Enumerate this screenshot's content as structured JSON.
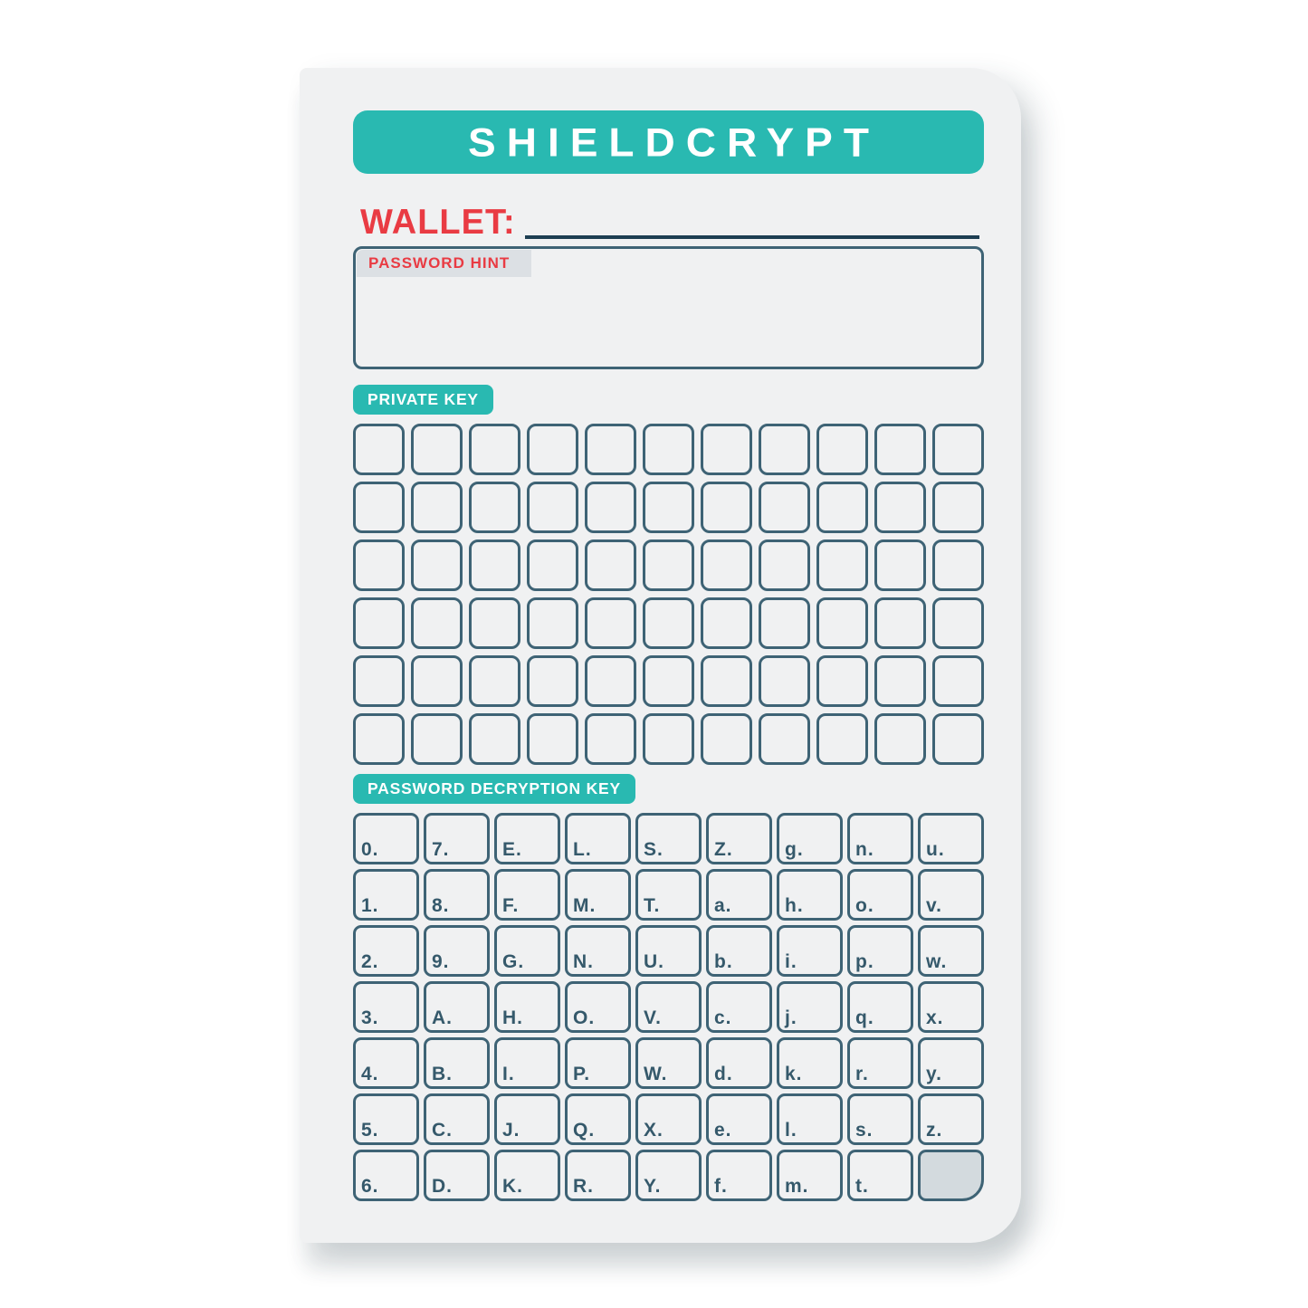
{
  "card": {
    "title": "SHIELDCRYPT",
    "wallet_label": "WALLET:",
    "hint_label": "PASSWORD HINT",
    "private_key_label": "PRIVATE KEY",
    "decryption_key_label": "PASSWORD DECRYPTION KEY"
  },
  "colors": {
    "teal": "#29b9b1",
    "red": "#e93b43",
    "slate_border": "#3e6375",
    "label_text": "#35596b",
    "line": "#1d3e52",
    "card_bg": "#f0f1f2",
    "strip_bg": "#dce0e4",
    "blank_cell_bg": "#d3dade"
  },
  "private_key_grid": {
    "rows": 6,
    "cols": 11
  },
  "decryption_grid": {
    "rows": [
      [
        "0.",
        "7.",
        "E.",
        "L.",
        "S.",
        "Z.",
        "g.",
        "n.",
        "u."
      ],
      [
        "1.",
        "8.",
        "F.",
        "M.",
        "T.",
        "a.",
        "h.",
        "o.",
        "v."
      ],
      [
        "2.",
        "9.",
        "G.",
        "N.",
        "U.",
        "b.",
        "i.",
        "p.",
        "w."
      ],
      [
        "3.",
        "A.",
        "H.",
        "O.",
        "V.",
        "c.",
        "j.",
        "q.",
        "x."
      ],
      [
        "4.",
        "B.",
        "I.",
        "P.",
        "W.",
        "d.",
        "k.",
        "r.",
        "y."
      ],
      [
        "5.",
        "C.",
        "J.",
        "Q.",
        "X.",
        "e.",
        "l.",
        "s.",
        "z."
      ],
      [
        "6.",
        "D.",
        "K.",
        "R.",
        "Y.",
        "f.",
        "m.",
        "t.",
        ""
      ]
    ]
  }
}
